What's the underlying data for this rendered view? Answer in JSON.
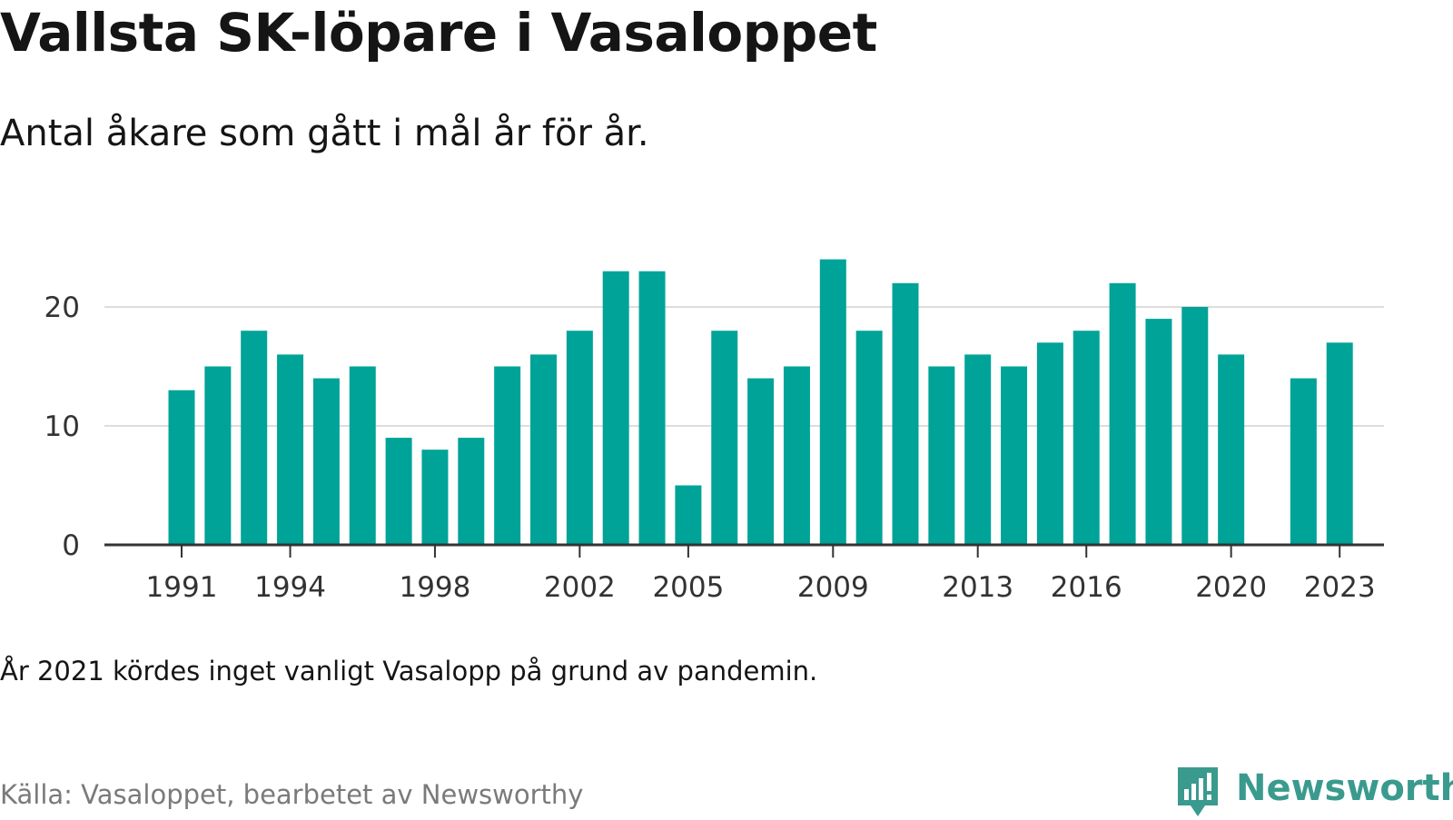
{
  "title": "Vallsta SK-löpare i Vasaloppet",
  "subtitle": "Antal åkare som gått i mål år för år.",
  "note": "År 2021 kördes inget vanligt Vasalopp på grund av pandemin.",
  "source": "Källa: Vasaloppet, bearbetet av Newsworthy",
  "logo": {
    "text": "Newsworthy",
    "icon": "newsworthy-logo-icon"
  },
  "colors": {
    "bar": "#00a398",
    "grid": "#dddddd",
    "axis": "#333333",
    "logo": "#3a9a8e"
  },
  "chart_data": {
    "type": "bar",
    "title": "Vallsta SK-löpare i Vasaloppet",
    "subtitle": "Antal åkare som gått i mål år för år.",
    "xlabel": "",
    "ylabel": "",
    "categories": [
      1991,
      1992,
      1993,
      1994,
      1995,
      1996,
      1997,
      1998,
      1999,
      2000,
      2001,
      2002,
      2003,
      2004,
      2005,
      2006,
      2007,
      2008,
      2009,
      2010,
      2011,
      2012,
      2013,
      2014,
      2015,
      2016,
      2017,
      2018,
      2019,
      2020,
      2021,
      2022,
      2023
    ],
    "values": [
      13,
      15,
      18,
      16,
      14,
      15,
      9,
      8,
      9,
      15,
      16,
      18,
      23,
      23,
      5,
      18,
      14,
      15,
      24,
      18,
      22,
      15,
      16,
      15,
      17,
      18,
      22,
      19,
      20,
      16,
      null,
      14,
      17
    ],
    "x_ticks": [
      1991,
      1994,
      1998,
      2002,
      2005,
      2009,
      2013,
      2016,
      2020,
      2023
    ],
    "y_ticks": [
      0,
      10,
      20
    ],
    "ylim": [
      0,
      25
    ],
    "grid": true,
    "legend": "none"
  }
}
